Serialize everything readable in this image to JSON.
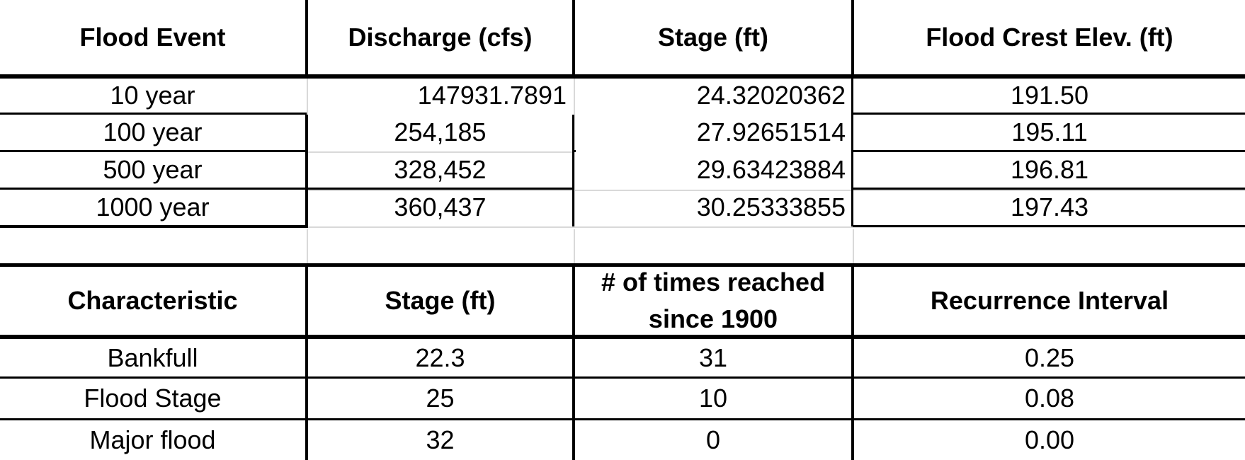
{
  "table1": {
    "headers": [
      "Flood Event",
      "Discharge (cfs)",
      "Stage (ft)",
      "Flood Crest Elev. (ft)"
    ],
    "rows": [
      [
        "10 year",
        "147931.7891",
        "24.32020362",
        "191.50"
      ],
      [
        "100 year",
        "254,185",
        "27.92651514",
        "195.11"
      ],
      [
        "500 year",
        "328,452",
        "29.63423884",
        "196.81"
      ],
      [
        "1000 year",
        "360,437",
        "30.25333855",
        "197.43"
      ]
    ]
  },
  "table2": {
    "headers": [
      "Characteristic",
      "Stage (ft)",
      "# of times reached since 1900",
      "Recurrence Interval"
    ],
    "rows": [
      [
        "Bankfull",
        "22.3",
        "31",
        "0.25"
      ],
      [
        "Flood Stage",
        "25",
        "10",
        "0.08"
      ],
      [
        "Major flood",
        "32",
        "0",
        "0.00"
      ]
    ]
  }
}
